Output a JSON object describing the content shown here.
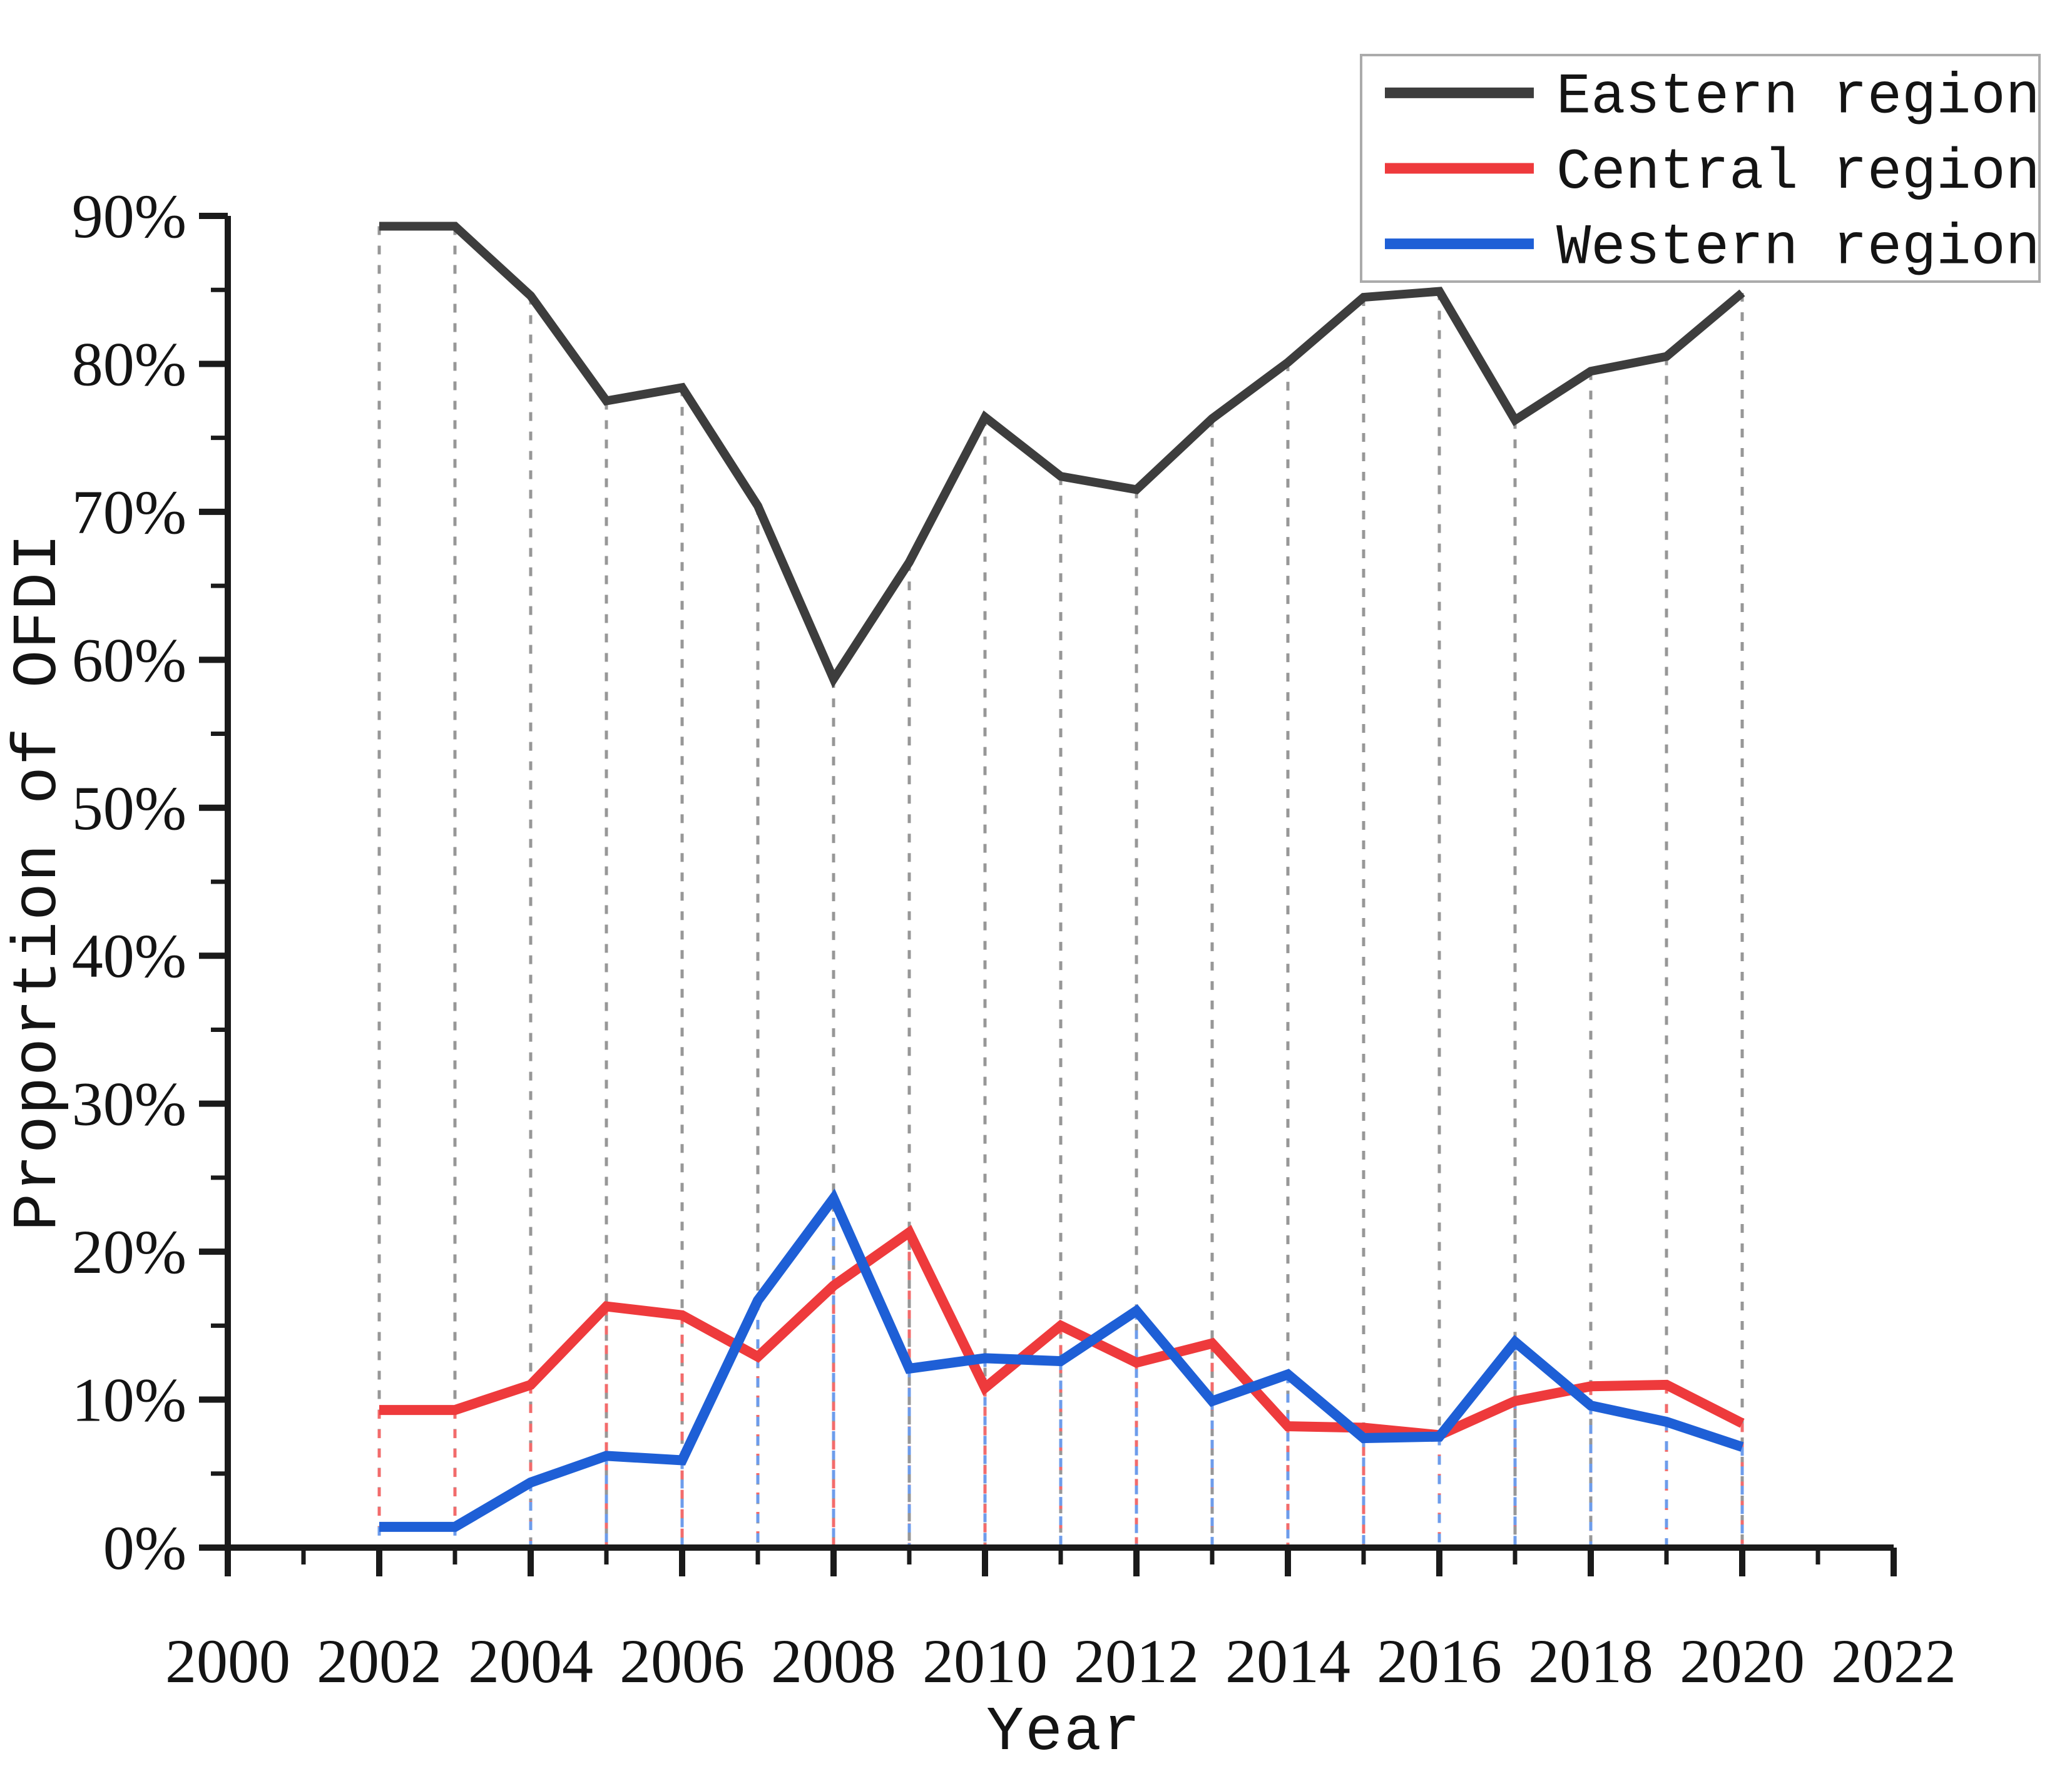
{
  "chart_data": {
    "type": "line",
    "title": "",
    "xlabel": "Year",
    "ylabel": "Proportion of OFDI",
    "xlim": [
      2000,
      2022
    ],
    "ylim": [
      0,
      90
    ],
    "x_major_ticks": [
      2000,
      2002,
      2004,
      2006,
      2008,
      2010,
      2012,
      2014,
      2016,
      2018,
      2020,
      2022
    ],
    "x_tick_labels": [
      "2000",
      "2002",
      "2004",
      "2006",
      "2008",
      "2010",
      "2012",
      "2014",
      "2016",
      "2018",
      "2020",
      "2022"
    ],
    "x_minor_ticks": [
      2001,
      2003,
      2005,
      2007,
      2009,
      2011,
      2013,
      2015,
      2017,
      2019,
      2021
    ],
    "y_major_ticks": [
      0,
      10,
      20,
      30,
      40,
      50,
      60,
      70,
      80,
      90
    ],
    "y_tick_labels": [
      "0%",
      "10%",
      "20%",
      "30%",
      "40%",
      "50%",
      "60%",
      "70%",
      "80%",
      "90%"
    ],
    "y_minor_ticks": [
      5,
      15,
      25,
      35,
      45,
      55,
      65,
      75,
      85
    ],
    "grid": "vertical-drop-lines",
    "legend_position": "top-right",
    "x": [
      2002,
      2003,
      2004,
      2005,
      2006,
      2007,
      2008,
      2009,
      2010,
      2011,
      2012,
      2013,
      2014,
      2015,
      2016,
      2017,
      2018,
      2019,
      2020
    ],
    "series": [
      {
        "name": "Eastern region",
        "color": "#3d3d3d",
        "drop_color": "#979797",
        "values": [
          89.3,
          89.3,
          84.6,
          77.5,
          78.4,
          70.4,
          58.7,
          66.6,
          76.4,
          72.4,
          71.5,
          76.3,
          80.1,
          84.5,
          84.9,
          76.2,
          79.5,
          80.5,
          84.8
        ]
      },
      {
        "name": "Central region",
        "color": "#ee3a3c",
        "drop_color": "#f26b6b",
        "values": [
          9.3,
          9.3,
          11.0,
          16.3,
          15.7,
          12.9,
          17.7,
          21.3,
          10.8,
          15.0,
          12.5,
          13.8,
          8.2,
          8.1,
          7.6,
          9.9,
          10.9,
          11.0,
          8.4
        ]
      },
      {
        "name": "Western region",
        "color": "#1e5fd6",
        "drop_color": "#6d9ceb",
        "values": [
          1.4,
          1.4,
          4.4,
          6.2,
          5.9,
          16.7,
          23.6,
          12.1,
          12.8,
          12.6,
          16.0,
          9.9,
          11.7,
          7.4,
          7.5,
          13.9,
          9.6,
          8.5,
          6.8
        ]
      }
    ]
  }
}
